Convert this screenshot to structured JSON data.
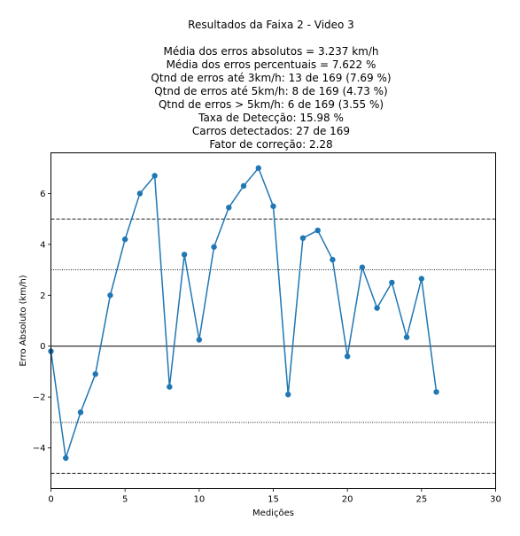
{
  "chart_data": {
    "type": "line",
    "title_lines": [
      "Resultados da Faixa 2 - Video 3",
      "",
      "Média dos erros absolutos =  3.237 km/h",
      "Média dos erros percentuais = 7.622 %",
      "Qtnd de erros até 3km/h: 13 de 169 (7.69 %)",
      "Qtnd de erros até 5km/h: 8 de 169 (4.73 %)",
      "Qtnd de erros > 5km/h: 6 de 169 (3.55 %)",
      "Taxa de Detecção: 15.98 %",
      "Carros detectados: 27 de 169",
      "Fator de correção: 2.28"
    ],
    "xlabel": "Medições",
    "ylabel": "Erro Absoluto (km/h)",
    "xlim": [
      0,
      30
    ],
    "ylim": [
      -5.6,
      7.6
    ],
    "xticks": [
      "0",
      "5",
      "10",
      "15",
      "20",
      "25",
      "30"
    ],
    "yticks": [
      "−4",
      "−2",
      "0",
      "2",
      "4",
      "6"
    ],
    "grid": false,
    "legend": "none",
    "series": [
      {
        "color": "#1f77b4",
        "x": [
          0,
          1,
          2,
          3,
          4,
          5,
          6,
          7,
          8,
          9,
          10,
          11,
          12,
          13,
          14,
          15,
          16,
          17,
          18,
          19,
          20,
          21,
          22,
          23,
          24,
          25,
          26
        ],
        "y": [
          -0.2,
          -4.4,
          -2.6,
          -1.1,
          2.0,
          4.2,
          6.0,
          6.7,
          -1.6,
          3.6,
          0.25,
          3.9,
          5.45,
          6.3,
          7.0,
          5.5,
          -1.9,
          4.25,
          4.55,
          3.4,
          -0.4,
          3.1,
          1.5,
          2.5,
          0.35,
          2.65,
          -1.8
        ]
      }
    ],
    "reference_lines": [
      {
        "y": 5,
        "style": "dashed"
      },
      {
        "y": 3,
        "style": "dotted"
      },
      {
        "y": 0,
        "style": "solid"
      },
      {
        "y": -3,
        "style": "dotted"
      },
      {
        "y": -5,
        "style": "dashed"
      }
    ]
  }
}
